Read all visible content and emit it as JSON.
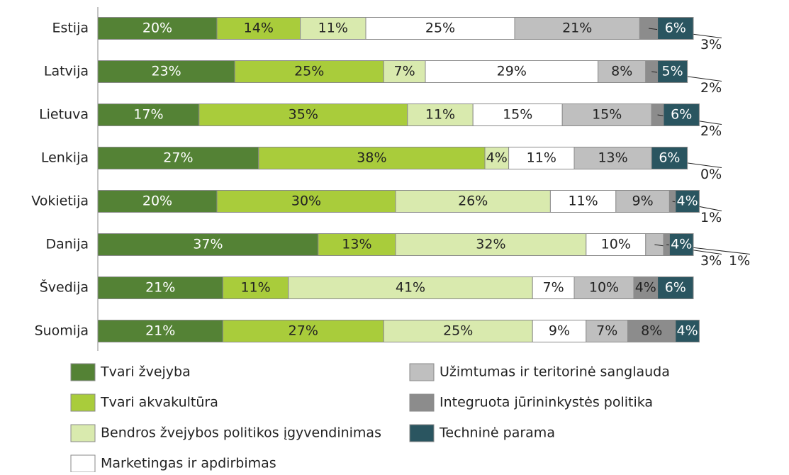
{
  "chart_data": {
    "type": "stacked-bar-horizontal",
    "categories": [
      "Estija",
      "Latvija",
      "Lietuva",
      "Lenkija",
      "Vokietija",
      "Danija",
      "Švedija",
      "Suomija"
    ],
    "xlim": [
      0,
      100
    ],
    "series": [
      {
        "name": "Tvari žvejyba",
        "color": "#548235",
        "values": [
          20,
          23,
          17,
          27,
          20,
          37,
          21,
          21
        ],
        "value_labels": [
          "20%",
          "23%",
          "17%",
          "27%",
          "20%",
          "37%",
          "21%",
          "21%"
        ]
      },
      {
        "name": "Tvari akvakultūra",
        "color": "#a9cc3b",
        "values": [
          14,
          25,
          35,
          38,
          30,
          13,
          11,
          27
        ],
        "value_labels": [
          "14%",
          "25%",
          "35%",
          "38%",
          "30%",
          "13%",
          "11%",
          "27%"
        ]
      },
      {
        "name": "Bendros žvejybos politikos įgyvendinimas",
        "color": "#d9eaae",
        "values": [
          11,
          7,
          11,
          4,
          26,
          32,
          41,
          25
        ],
        "value_labels": [
          "11%",
          "7%",
          "11%",
          "4%",
          "26%",
          "32%",
          "41%",
          "25%"
        ]
      },
      {
        "name": "Marketingas ir apdirbimas",
        "color": "#ffffff",
        "values": [
          25,
          29,
          15,
          11,
          11,
          10,
          7,
          9
        ],
        "value_labels": [
          "25%",
          "29%",
          "15%",
          "11%",
          "11%",
          "10%",
          "7%",
          "9%"
        ]
      },
      {
        "name": "Užimtumas ir teritorinė sanglauda",
        "color": "#bfbfbf",
        "values": [
          21,
          8,
          15,
          13,
          9,
          3,
          10,
          7
        ],
        "value_labels": [
          "21%",
          "8%",
          "15%",
          "13%",
          "9%",
          "3%",
          "10%",
          "7%"
        ]
      },
      {
        "name": "Integruota jūrininkystės politika",
        "color": "#8c8c8c",
        "values": [
          3,
          2,
          2,
          0,
          1,
          1,
          4,
          8
        ],
        "value_labels": [
          "3%",
          "2%",
          "2%",
          "0%",
          "1%",
          "1%",
          "4%",
          "8%"
        ]
      },
      {
        "name": "Techninė parama",
        "color": "#2a5560",
        "values": [
          6,
          5,
          6,
          6,
          4,
          4,
          6,
          4
        ],
        "value_labels": [
          "6%",
          "5%",
          "6%",
          "6%",
          "4%",
          "4%",
          "6%",
          "4%"
        ]
      }
    ]
  }
}
